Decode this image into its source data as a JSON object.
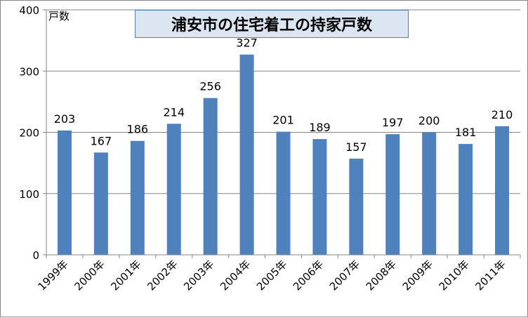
{
  "chart_data": {
    "type": "bar",
    "title": "浦安市の住宅着工の持家戸数",
    "ylabel": "戸数",
    "xlabel": "",
    "categories": [
      "1999年",
      "2000年",
      "2001年",
      "2002年",
      "2003年",
      "2004年",
      "2005年",
      "2006年",
      "2007年",
      "2008年",
      "2009年",
      "2010年",
      "2011年"
    ],
    "values": [
      203,
      167,
      186,
      214,
      256,
      327,
      201,
      189,
      157,
      197,
      200,
      181,
      210
    ],
    "ylim": [
      0,
      400
    ],
    "yticks": [
      0,
      100,
      200,
      300,
      400
    ],
    "grid": true,
    "legend": false,
    "colors": {
      "bar": "#4f81bd",
      "grid": "#868686",
      "title_bg": "#dce6f2",
      "title_border": "#4f81bd"
    }
  }
}
